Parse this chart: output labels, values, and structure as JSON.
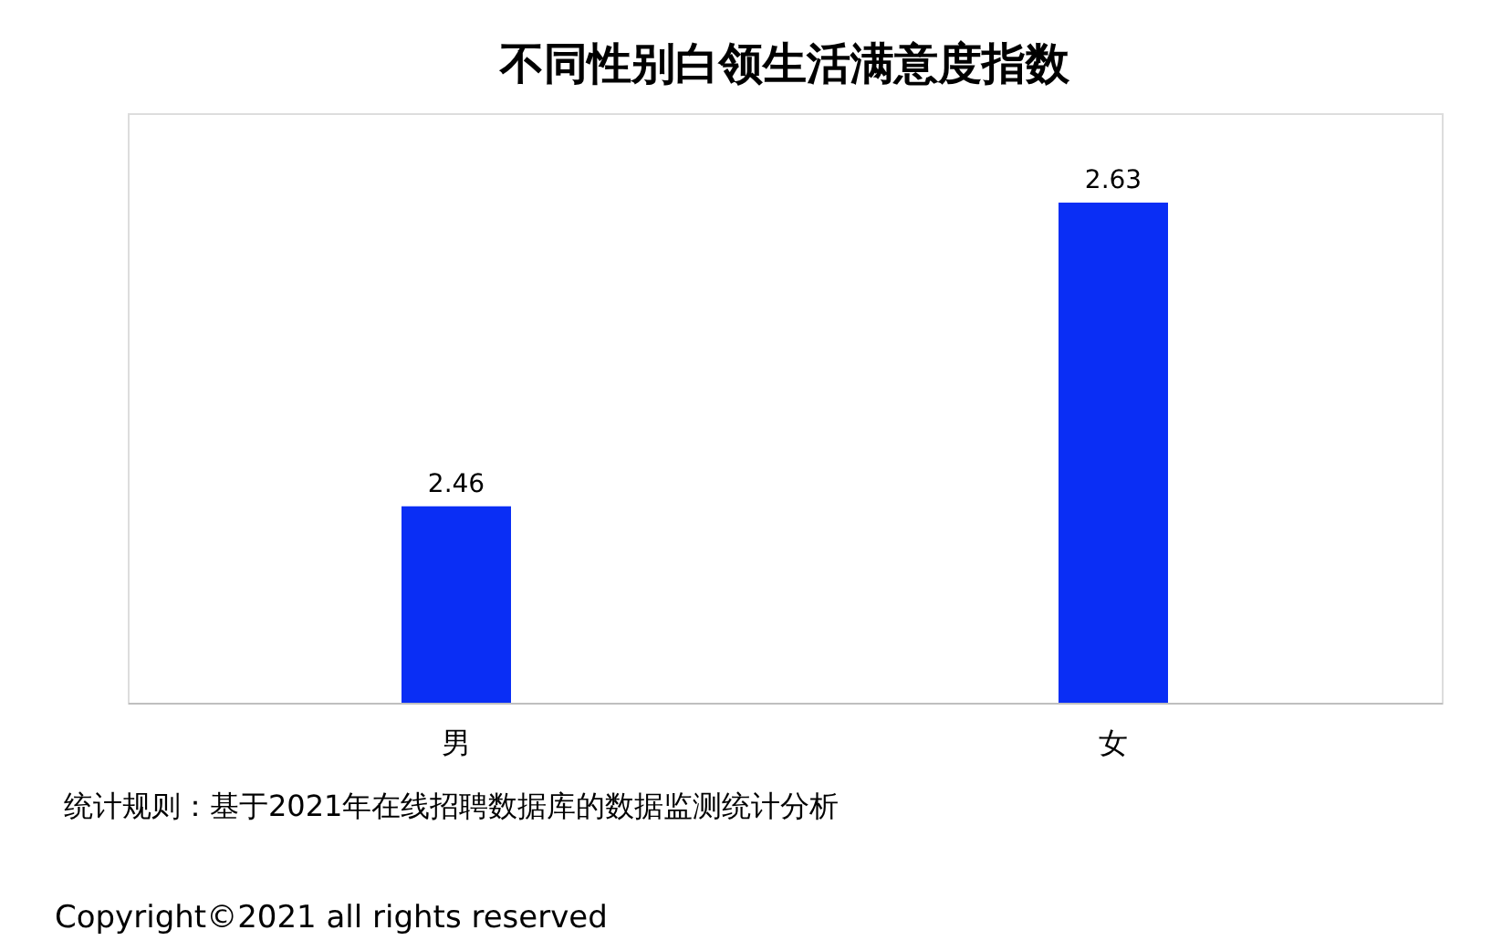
{
  "chart_data": {
    "type": "bar",
    "title": "不同性别白领生活满意度指数",
    "categories": [
      "男",
      "女"
    ],
    "values": [
      2.46,
      2.63
    ],
    "color": "#0a2ef5",
    "ylim": [
      2.35,
      2.68
    ],
    "data_labels": true,
    "tick_labels": "x",
    "grid": false,
    "annotations": [
      "统计规则：基于2021年在线招聘数据库的数据监测统计分析",
      "Copyright©2021 all rights reserved"
    ]
  }
}
